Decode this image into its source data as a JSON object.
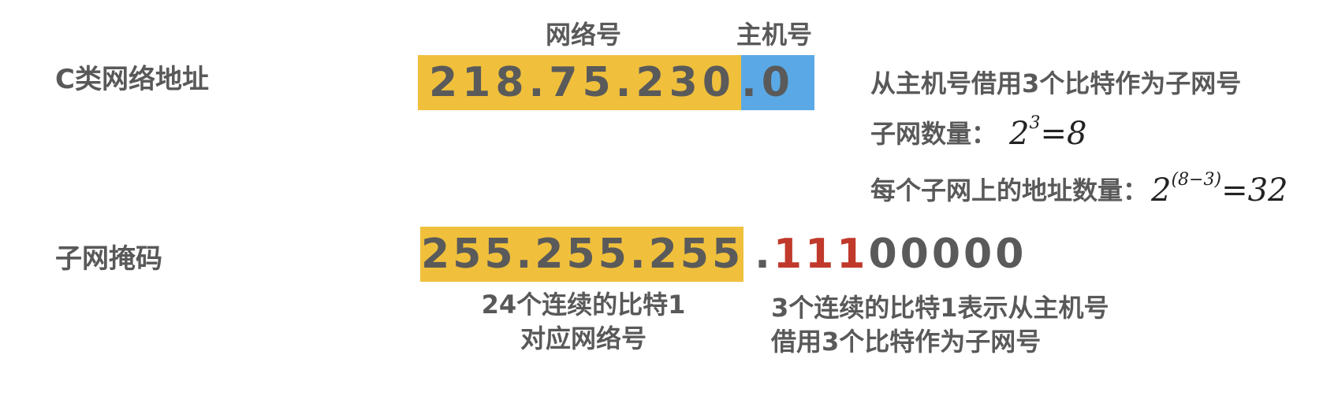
{
  "row1": {
    "label": "C类网络地址",
    "network_header": "网络号",
    "host_header": "主机号",
    "network_part": "218.75.230",
    "host_part": ".0"
  },
  "info": {
    "line1": "从主机号借用3个比特作为子网号",
    "line2_label": "子网数量：",
    "line2_base": "2",
    "line2_exp": "3",
    "line2_result": "=8",
    "line3_label": "每个子网上的地址数量：",
    "line3_base": "2",
    "line3_exp": "(8−3)",
    "line3_result": "=32"
  },
  "row2": {
    "label": "子网掩码",
    "mask_network": "255.255.255",
    "mask_dot": ".",
    "mask_ones": "111",
    "mask_zeros": "00000",
    "caption_left_line1": "24个连续的比特1",
    "caption_left_line2": "对应网络号",
    "caption_right_line1": "3个连续的比特1表示从主机号",
    "caption_right_line2": "借用3个比特作为子网号"
  },
  "colors": {
    "network_highlight": "#f0c03c",
    "host_highlight": "#5aa9e6",
    "borrowed_bits": "#c0392b",
    "text": "#595959"
  }
}
